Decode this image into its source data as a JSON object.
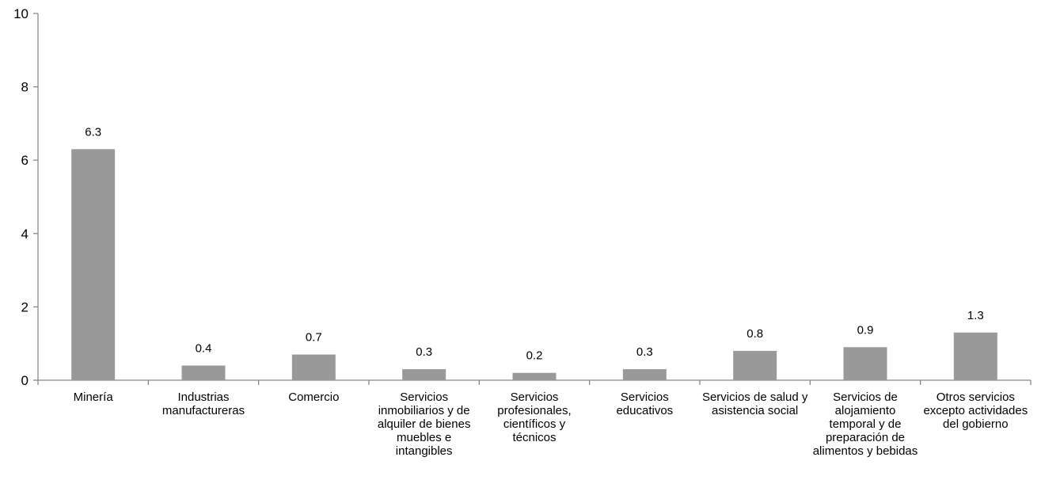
{
  "chart_data": {
    "type": "bar",
    "categories": [
      "Minería",
      "Industrias manufactureras",
      "Comercio",
      "Servicios inmobiliarios y de alquiler de bienes muebles e intangibles",
      "Servicios profesionales, científicos y técnicos",
      "Servicios educativos",
      "Servicios de salud y asistencia social",
      "Servicios de alojamiento temporal y de preparación de alimentos y bebidas",
      "Otros servicios excepto actividades del gobierno"
    ],
    "values": [
      6.3,
      0.4,
      0.7,
      0.3,
      0.2,
      0.3,
      0.8,
      0.9,
      1.3
    ],
    "data_labels": [
      "6.3",
      "0.4",
      "0.7",
      "0.3",
      "0.2",
      "0.3",
      "0.8",
      "0.9",
      "1.3"
    ],
    "ylim": [
      0,
      10
    ],
    "yticks": [
      "0",
      "2",
      "4",
      "6",
      "8",
      "10"
    ],
    "title": "",
    "xlabel": "",
    "ylabel": "",
    "grid": false,
    "bar_color": "#999999",
    "axis_color": "#888888"
  }
}
